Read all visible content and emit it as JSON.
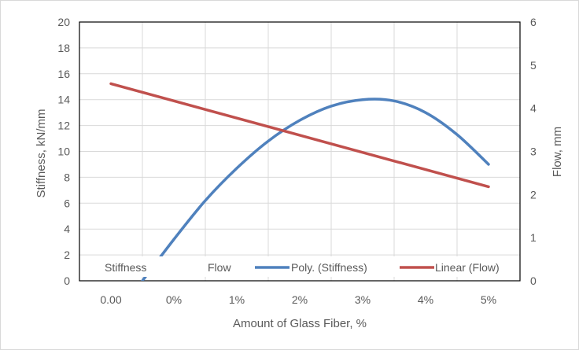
{
  "chart_data": {
    "type": "line",
    "title": "",
    "xlabel": "Amount of Glass Fiber, %",
    "ylabel": "Stiffness, kN/mm",
    "y2label": "Flow, mm",
    "categories": [
      "0.00",
      "0%",
      "1%",
      "2%",
      "3%",
      "4%",
      "5%"
    ],
    "ylim": [
      0,
      20
    ],
    "y2lim": [
      0,
      6
    ],
    "yticks": [
      "0",
      "2",
      "4",
      "6",
      "8",
      "10",
      "12",
      "14",
      "16",
      "18",
      "20"
    ],
    "y2ticks": [
      "0",
      "1",
      "2",
      "3",
      "4",
      "5",
      "6"
    ],
    "grid": true,
    "legend_position": "bottom-inside",
    "legend": [
      "Stiffness",
      "Flow",
      "Poly. (Stiffness)",
      "Linear (Flow)"
    ],
    "series": [
      {
        "name": "Poly. (Stiffness)",
        "axis": "left",
        "color": "#4f81bd",
        "x": [
          0.5,
          1.0,
          1.5,
          2.0,
          2.5,
          3.0,
          3.5,
          4.0,
          4.5,
          5.0,
          5.5,
          6.0
        ],
        "values": [
          0,
          3.2,
          6.2,
          8.7,
          10.8,
          12.4,
          13.5,
          14.0,
          13.9,
          13.0,
          11.3,
          9.0
        ]
      },
      {
        "name": "Linear (Flow)",
        "axis": "right",
        "color": "#c0504d",
        "x": [
          0,
          6.0
        ],
        "values": [
          4.57,
          2.18
        ]
      }
    ]
  }
}
